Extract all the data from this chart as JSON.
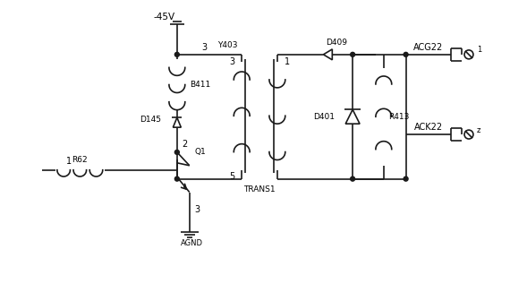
{
  "bg_color": "#ffffff",
  "line_color": "#1a1a1a",
  "line_width": 1.2,
  "labels": {
    "voltage": "-45V",
    "R62": "R62",
    "B411": "B411",
    "D145": "D145",
    "TRANS1": "TRANS1",
    "Y403": "Y403",
    "D409": "D409",
    "D401": "D401",
    "R413": "R413",
    "ACG22": "ACG22",
    "ACK22": "ACK22",
    "Q1": "Q1",
    "AGND": "AGND",
    "n3_top": "3",
    "n2": "2",
    "n5_bot": "5",
    "n1_sec": "1",
    "n1_r62": "1",
    "n3_emit": "3"
  }
}
